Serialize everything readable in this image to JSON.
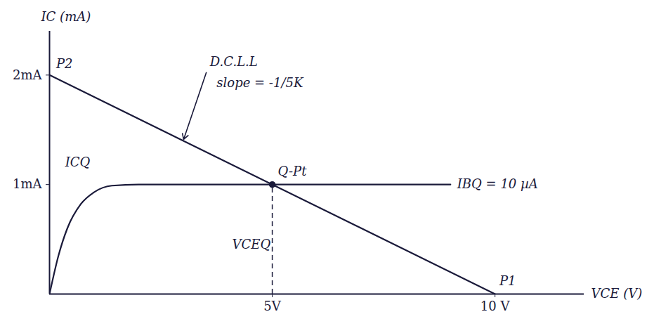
{
  "chart_data": {
    "type": "line",
    "x_label": "VCE (V)",
    "y_label": "IC (mA)",
    "xlim": [
      0,
      12
    ],
    "ylim": [
      0,
      2.4
    ],
    "xticks": [
      {
        "value": 5,
        "label": "5V"
      },
      {
        "value": 10,
        "label": "10 V"
      }
    ],
    "yticks": [
      {
        "value": 1,
        "label": "1mA"
      },
      {
        "value": 2,
        "label": "2mA"
      }
    ],
    "color": "#1a1a3a",
    "series": [
      {
        "x": [
          0,
          10
        ],
        "values": [
          2,
          0
        ],
        "color": "#1a1a3a",
        "line_style": "solid"
      },
      {
        "x": [
          0,
          0.2,
          0.4,
          0.7,
          1,
          1.4,
          2,
          9
        ],
        "values": [
          0,
          0.35,
          0.6,
          0.82,
          0.93,
          0.99,
          1,
          1
        ],
        "color": "#1a1a3a",
        "line_style": "solid"
      }
    ],
    "points": [
      {
        "x": 5,
        "y": 1,
        "label": "Q-Pt",
        "marker": "dot",
        "line_style": "dashed"
      }
    ],
    "annotations": [
      {
        "text": "D.C.L.L",
        "x": 3.6,
        "y": 2.12,
        "arrow_to": [
          3,
          1.4
        ]
      },
      {
        "text": "slope = -1/5K",
        "x": 3.75,
        "y": 1.93
      },
      {
        "text": "P2",
        "x": 0.15,
        "y": 2.1
      },
      {
        "text": "P1",
        "x": 10.1,
        "y": 0.12
      },
      {
        "text": "ICQ",
        "x": 0.35,
        "y": 1.2
      },
      {
        "text": "VCEQ",
        "x": 4.1,
        "y": 0.45
      },
      {
        "text": "IBQ = 10 µA",
        "x": 9.15,
        "y": 1
      }
    ]
  }
}
